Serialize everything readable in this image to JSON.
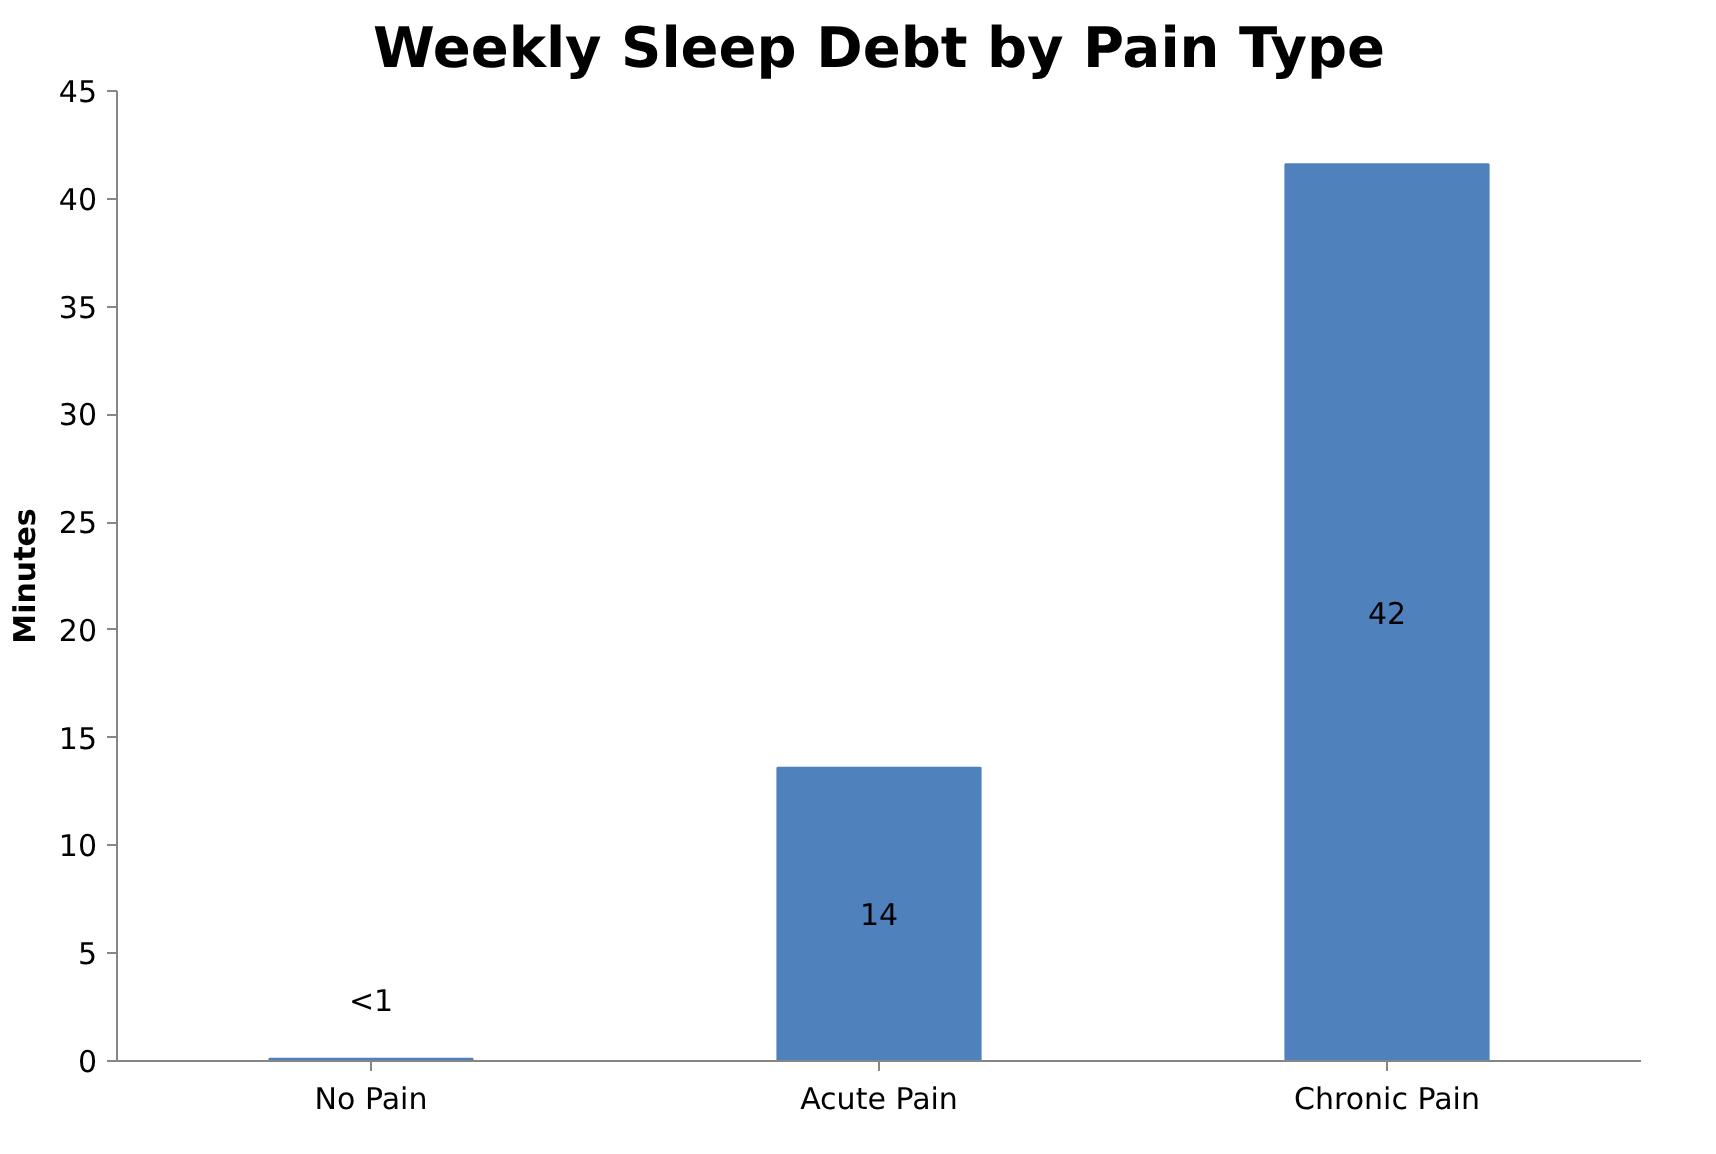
{
  "chart_data": {
    "type": "bar",
    "title": "Weekly Sleep Debt by Pain Type",
    "ylabel": "Minutes",
    "categories": [
      "No Pain",
      "Acute Pain",
      "Chronic Pain"
    ],
    "values": [
      0.1,
      13.6,
      41.6
    ],
    "value_labels": [
      "<1",
      "14",
      "42"
    ],
    "color": "#4f81bd",
    "ylim": [
      0,
      45
    ],
    "yticks": [
      0,
      5,
      10,
      15,
      20,
      25,
      30,
      35,
      40,
      45
    ],
    "grid": false
  }
}
